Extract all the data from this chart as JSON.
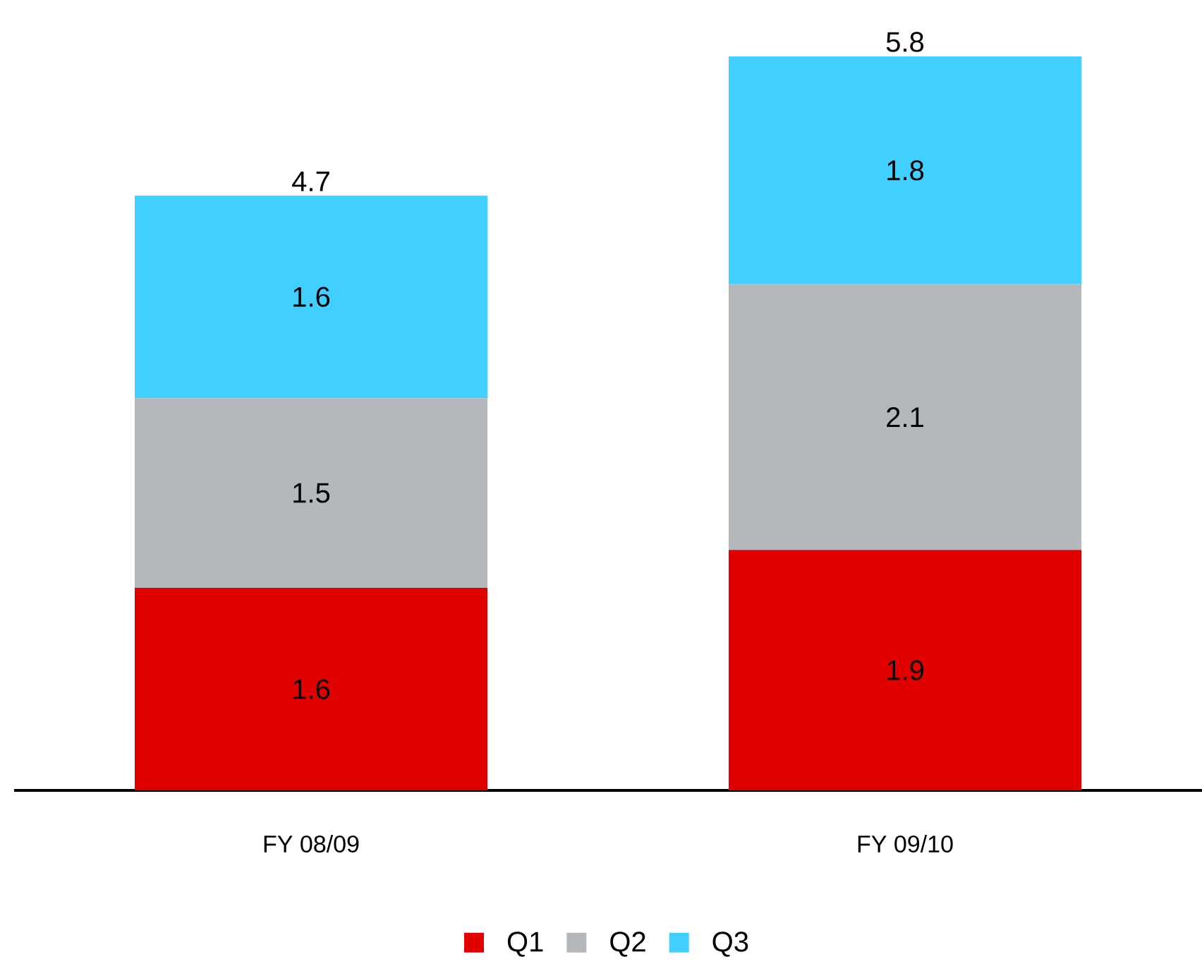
{
  "chart_data": {
    "type": "bar",
    "stacked": true,
    "categories": [
      "FY 08/09",
      "FY 09/10"
    ],
    "series": [
      {
        "name": "Q1",
        "color": "#e00000",
        "values": [
          1.6,
          1.9
        ],
        "value_labels": [
          "1.6",
          "1.9"
        ]
      },
      {
        "name": "Q2",
        "color": "#b4b8bd",
        "values": [
          1.5,
          2.1
        ],
        "value_labels": [
          "1.5",
          "2.1"
        ]
      },
      {
        "name": "Q3",
        "color": "#40cfff",
        "values": [
          1.6,
          1.8
        ],
        "value_labels": [
          "1.6",
          "1.8"
        ]
      }
    ],
    "totals": [
      "4.7",
      "5.8"
    ],
    "legend": "bottom",
    "tick_labels": "x"
  }
}
